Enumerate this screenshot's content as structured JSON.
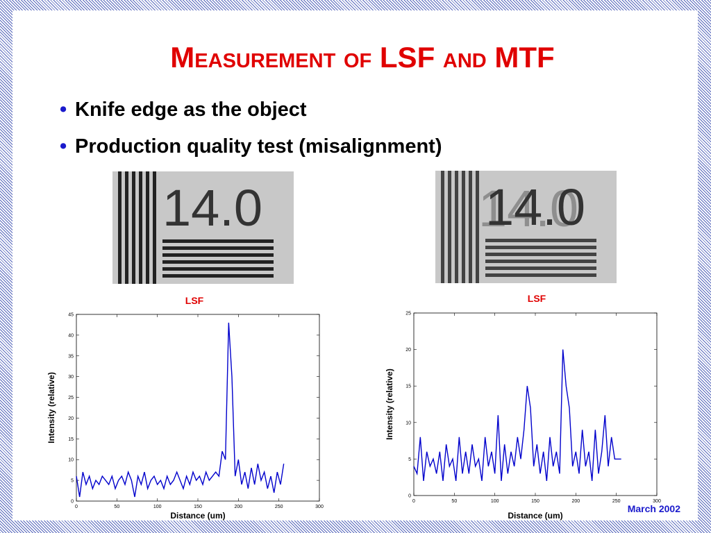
{
  "title": "Measurement of LSF and MTF",
  "bullets": [
    "Knife edge as the object",
    "Production quality test (misalignment)"
  ],
  "images": [
    {
      "label": "14.0"
    },
    {
      "label": "14.0"
    }
  ],
  "footer": "March 2002",
  "chart_data": [
    {
      "type": "line",
      "title": "LSF",
      "x_label": "Distance (um)",
      "y_label": "Intensity (relative)",
      "xlim": [
        0,
        300
      ],
      "xticks": [
        0,
        50,
        100,
        150,
        200,
        250,
        300
      ],
      "ylim": [
        0,
        45
      ],
      "yticks": [
        0,
        5,
        10,
        15,
        20,
        25,
        30,
        35,
        40,
        45
      ],
      "x": [
        0,
        4,
        8,
        12,
        16,
        20,
        24,
        28,
        32,
        36,
        40,
        44,
        48,
        52,
        56,
        60,
        64,
        68,
        72,
        76,
        80,
        84,
        88,
        92,
        96,
        100,
        104,
        108,
        112,
        116,
        120,
        124,
        128,
        132,
        136,
        140,
        144,
        148,
        152,
        156,
        160,
        164,
        168,
        172,
        176,
        180,
        184,
        188,
        192,
        196,
        200,
        204,
        208,
        212,
        216,
        220,
        224,
        228,
        232,
        236,
        240,
        244,
        248,
        252,
        256
      ],
      "series": [
        {
          "name": "LSF",
          "color": "#0000cc",
          "values": [
            6,
            1,
            7,
            4,
            6,
            3,
            5,
            4,
            6,
            5,
            4,
            6,
            3,
            5,
            6,
            4,
            7,
            5,
            1,
            6,
            4,
            7,
            3,
            5,
            6,
            4,
            5,
            3,
            6,
            4,
            5,
            7,
            5,
            3,
            6,
            4,
            7,
            5,
            6,
            4,
            7,
            5,
            6,
            7,
            6,
            12,
            10,
            43,
            30,
            6,
            10,
            4,
            7,
            3,
            8,
            4,
            9,
            5,
            7,
            3,
            6,
            2,
            7,
            4,
            9
          ]
        }
      ]
    },
    {
      "type": "line",
      "title": "LSF",
      "x_label": "Distance (um)",
      "y_label": "Intensity (relative)",
      "xlim": [
        0,
        300
      ],
      "xticks": [
        0,
        50,
        100,
        150,
        200,
        250,
        300
      ],
      "ylim": [
        0,
        25
      ],
      "yticks": [
        0,
        5,
        10,
        15,
        20,
        25
      ],
      "x": [
        0,
        4,
        8,
        12,
        16,
        20,
        24,
        28,
        32,
        36,
        40,
        44,
        48,
        52,
        56,
        60,
        64,
        68,
        72,
        76,
        80,
        84,
        88,
        92,
        96,
        100,
        104,
        108,
        112,
        116,
        120,
        124,
        128,
        132,
        136,
        140,
        144,
        148,
        152,
        156,
        160,
        164,
        168,
        172,
        176,
        180,
        184,
        188,
        192,
        196,
        200,
        204,
        208,
        212,
        216,
        220,
        224,
        228,
        232,
        236,
        240,
        244,
        248,
        252,
        256
      ],
      "series": [
        {
          "name": "LSF",
          "color": "#0000cc",
          "values": [
            4,
            3,
            8,
            2,
            6,
            4,
            5,
            3,
            6,
            2,
            7,
            4,
            5,
            2,
            8,
            3,
            6,
            3,
            7,
            4,
            5,
            2,
            8,
            4,
            6,
            3,
            11,
            2,
            7,
            3,
            6,
            4,
            8,
            5,
            9,
            15,
            12,
            4,
            7,
            3,
            6,
            2,
            8,
            4,
            6,
            3,
            20,
            15,
            12,
            4,
            6,
            3,
            9,
            4,
            6,
            2,
            9,
            3,
            6,
            11,
            4,
            8,
            5,
            5,
            5
          ]
        }
      ]
    }
  ]
}
